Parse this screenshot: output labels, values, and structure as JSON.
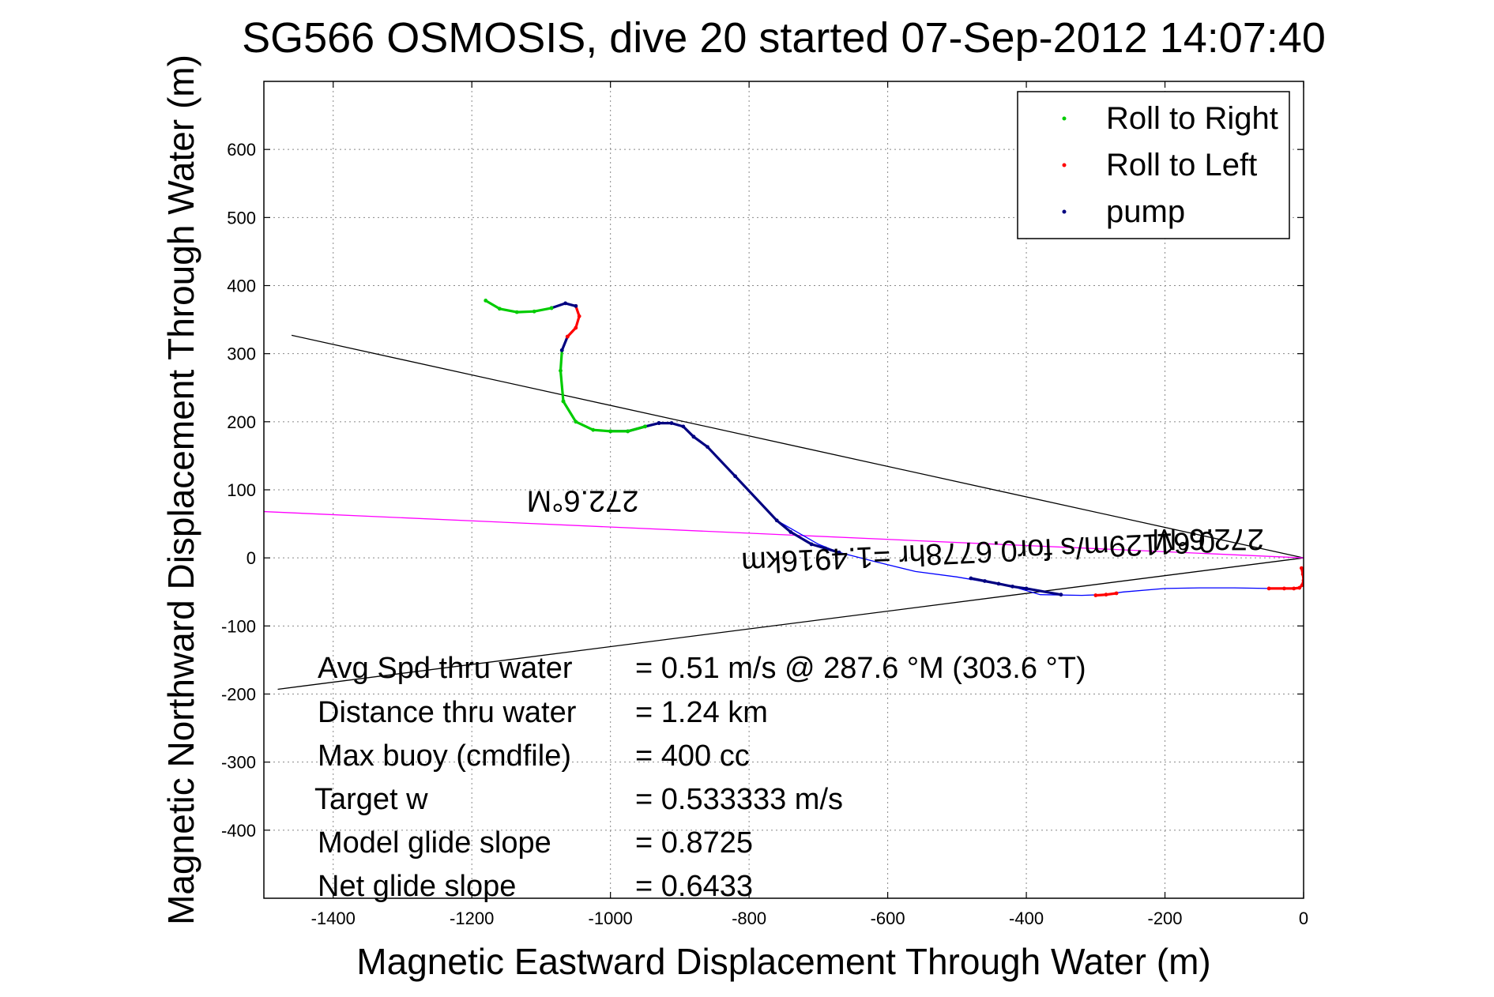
{
  "chart_data": {
    "type": "scatter",
    "title": "SG566 OSMOSIS, dive 20 started 07-Sep-2012 14:07:40",
    "xlabel": "Magnetic Eastward Displacement Through Water (m)",
    "ylabel": "Magnetic Northward Displacement Through Water (m)",
    "xlim": [
      -1500,
      0
    ],
    "ylim": [
      -500,
      700
    ],
    "xticks": [
      -1400,
      -1200,
      -1000,
      -800,
      -600,
      -400,
      -200,
      0
    ],
    "yticks": [
      -400,
      -300,
      -200,
      -100,
      0,
      100,
      200,
      300,
      400,
      500,
      600
    ],
    "grid": true,
    "legend_position": "top-right",
    "colors": {
      "right": "#00cc00",
      "left": "#ff0000",
      "pump": "#000080",
      "track": "#0000ff",
      "heading": "#ff00ff",
      "bounds": "#000000"
    },
    "legend": [
      {
        "label": "Roll to Right",
        "color": "#00cc00"
      },
      {
        "label": "Roll to Left",
        "color": "#ff0000"
      },
      {
        "label": "pump",
        "color": "#000080"
      }
    ],
    "track": {
      "x": [
        -3,
        -1,
        0,
        -2,
        -6,
        -14,
        -28,
        -50,
        -100,
        -150,
        -200,
        -260,
        -290,
        -320,
        -380,
        -420,
        -500,
        -560,
        -620,
        -670,
        -700,
        -760,
        -820,
        -860,
        -880,
        -895,
        -912,
        -930,
        -950,
        -975,
        -1000,
        -1025,
        -1050,
        -1068,
        -1072,
        -1070,
        -1062,
        -1050,
        -1045,
        -1050,
        -1065,
        -1085,
        -1110,
        -1135,
        -1160,
        -1180
      ],
      "y": [
        -15,
        -24,
        -33,
        -40,
        -44,
        -45,
        -45,
        -45,
        -44,
        -44,
        -45,
        -50,
        -54,
        -55,
        -54,
        -42,
        -28,
        -20,
        -5,
        8,
        20,
        55,
        120,
        163,
        178,
        193,
        198,
        198,
        193,
        186,
        186,
        188,
        200,
        230,
        275,
        305,
        325,
        338,
        355,
        370,
        374,
        367,
        362,
        361,
        366,
        378
      ],
      "segments": [
        {
          "type": "left",
          "x": [
            -3,
            -1,
            0,
            -2,
            -6,
            -14,
            -28,
            -50
          ],
          "y": [
            -15,
            -24,
            -33,
            -40,
            -44,
            -45,
            -45,
            -45
          ]
        },
        {
          "type": "left",
          "x": [
            -270,
            -285,
            -300
          ],
          "y": [
            -52,
            -54,
            -55
          ]
        },
        {
          "type": "pump",
          "x": [
            -350,
            -400,
            -420,
            -440,
            -460,
            -480
          ],
          "y": [
            -54,
            -45,
            -42,
            -38,
            -34,
            -30
          ]
        },
        {
          "type": "pump",
          "x": [
            -670,
            -690,
            -710,
            -740,
            -760,
            -820,
            -860,
            -880
          ],
          "y": [
            8,
            14,
            20,
            38,
            55,
            120,
            163,
            178
          ]
        },
        {
          "type": "pump",
          "x": [
            -880,
            -895,
            -912,
            -930
          ],
          "y": [
            178,
            193,
            198,
            198
          ]
        },
        {
          "type": "pump",
          "x": [
            -930,
            -950,
            -975,
            -1000
          ],
          "y": [
            198,
            193,
            186,
            186
          ]
        },
        {
          "type": "right",
          "x": [
            -950,
            -975,
            -1000,
            -1025,
            -1050,
            -1068
          ],
          "y": [
            193,
            186,
            186,
            188,
            200,
            230
          ]
        },
        {
          "type": "right",
          "x": [
            -1068,
            -1072,
            -1070
          ],
          "y": [
            230,
            275,
            305
          ]
        },
        {
          "type": "pump",
          "x": [
            -1070,
            -1062
          ],
          "y": [
            305,
            325
          ]
        },
        {
          "type": "left",
          "x": [
            -1062,
            -1050,
            -1045,
            -1050
          ],
          "y": [
            325,
            338,
            355,
            370
          ]
        },
        {
          "type": "pump",
          "x": [
            -1050,
            -1065,
            -1085
          ],
          "y": [
            370,
            374,
            367
          ]
        },
        {
          "type": "right",
          "x": [
            -1085,
            -1110,
            -1135,
            -1160,
            -1180
          ],
          "y": [
            367,
            362,
            361,
            366,
            378
          ]
        }
      ]
    },
    "lines": [
      {
        "role": "upper-bound",
        "x": [
          -1460,
          0
        ],
        "y": [
          327,
          0
        ]
      },
      {
        "role": "lower-bound",
        "x": [
          -1480,
          0
        ],
        "y": [
          -193,
          0
        ]
      },
      {
        "role": "heading",
        "x": [
          -1500,
          0
        ],
        "y": [
          68,
          0
        ]
      }
    ],
    "annotations": [
      {
        "id": "heading_left",
        "text": "272.6°M",
        "x": -1040,
        "y": 98
      },
      {
        "id": "heading_right",
        "text": "272.6°M",
        "x": -138,
        "y": 42
      },
      {
        "id": "distance",
        "text": "0.61129m/s for0.6778hr =1.4916km",
        "x": -470,
        "y": 23
      }
    ],
    "stats": [
      {
        "label": "Avg Spd thru water",
        "value": "=  0.51 m/s @ 287.6 °M (303.6 °T)"
      },
      {
        "label": "Distance thru water",
        "value": "=  1.24 km"
      },
      {
        "label": "Max buoy (cmdfile)",
        "value": "= 400 cc"
      },
      {
        "label": "Target w",
        "value": "= 0.533333 m/s"
      },
      {
        "label": "Model glide slope",
        "value": "= 0.8725"
      },
      {
        "label": "Net glide slope",
        "value": "= 0.6433"
      }
    ]
  }
}
